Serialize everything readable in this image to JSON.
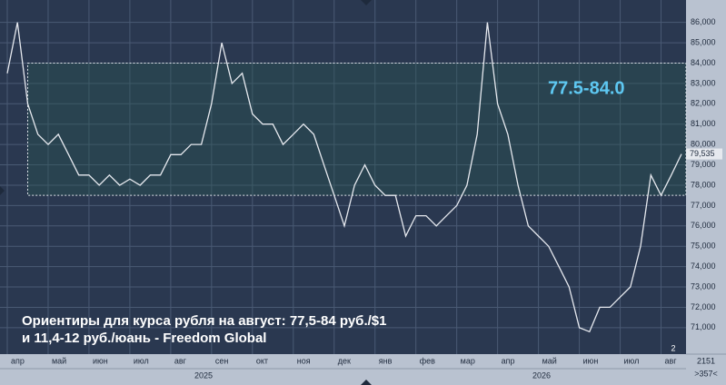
{
  "chart_data": {
    "type": "line",
    "categories": [
      "апр",
      null,
      null,
      null,
      "май",
      null,
      null,
      null,
      "июн",
      null,
      null,
      null,
      "июл",
      null,
      null,
      null,
      "авг",
      null,
      null,
      null,
      "сен",
      null,
      null,
      null,
      "окт",
      null,
      null,
      null,
      "ноя",
      null,
      null,
      null,
      "дек",
      null,
      null,
      null,
      "янв",
      null,
      null,
      null,
      "фев",
      null,
      null,
      null,
      "мар",
      null,
      null,
      null,
      "апр",
      null,
      null,
      null,
      "май",
      null,
      null,
      null,
      "июн",
      null,
      null,
      null,
      "июл",
      null,
      null,
      null,
      "авг",
      null,
      null
    ],
    "series": [
      {
        "color": "#e6e9ef",
        "values": [
          83.5,
          86,
          82,
          80.5,
          80,
          80.5,
          79.5,
          78.5,
          78.5,
          78,
          78.5,
          78,
          78.3,
          78,
          78.5,
          78.5,
          79.5,
          79.5,
          80,
          80,
          82,
          85,
          83,
          83.5,
          81.5,
          81,
          81,
          80,
          80.5,
          81,
          80.5,
          79,
          77.5,
          76,
          78,
          79,
          78,
          77.5,
          77.5,
          75.5,
          76.5,
          76.5,
          76,
          76.5,
          77,
          78,
          80.5,
          86,
          82,
          80.5,
          78,
          76,
          75.5,
          75,
          74,
          73,
          71,
          70.8,
          72,
          72,
          72.5,
          73,
          75,
          78.5,
          77.5,
          78.5,
          79.535
        ]
      }
    ],
    "last_price_label": "79,535",
    "ylim": [
      69.7,
      87.1
    ],
    "yticks": [
      {
        "value": 71,
        "label": "71,000"
      },
      {
        "value": 72,
        "label": "72,000"
      },
      {
        "value": 73,
        "label": "73,000"
      },
      {
        "value": 74,
        "label": "74,000"
      },
      {
        "value": 75,
        "label": "75,000"
      },
      {
        "value": 76,
        "label": "76,000"
      },
      {
        "value": 77,
        "label": "77,000"
      },
      {
        "value": 78,
        "label": "78,000"
      },
      {
        "value": 79,
        "label": "79,000"
      },
      {
        "value": 80,
        "label": "80,000"
      },
      {
        "value": 81,
        "label": "81,000"
      },
      {
        "value": 82,
        "label": "82,000"
      },
      {
        "value": 83,
        "label": "83,000"
      },
      {
        "value": 84,
        "label": "84,000"
      },
      {
        "value": 85,
        "label": "85,000"
      },
      {
        "value": 86,
        "label": "86,000"
      }
    ],
    "grid": true,
    "range": {
      "low": 77.5,
      "high": 84.0,
      "label": "77.5-84.0"
    },
    "year_labels": [
      "2025",
      "2026"
    ],
    "annotation": [
      "Ориентиры для курса рубля на август: 77,5-84 руб./$1",
      "и 11,4-12 руб./юань - Freedom Global"
    ],
    "footer": {
      "pane_number": "2",
      "count": "2151",
      "scale": ">357<"
    }
  }
}
